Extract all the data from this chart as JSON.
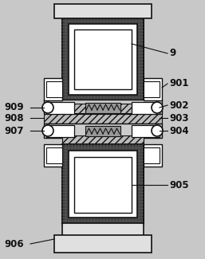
{
  "bg_color": "#c8c8c8",
  "fig_bg": "#c8c8c8",
  "dark": "#111111",
  "white": "#ffffff",
  "dot_gray": "#555555",
  "light_gray": "#cccccc",
  "label_fontsize": 8.5,
  "label_fontweight": "bold"
}
